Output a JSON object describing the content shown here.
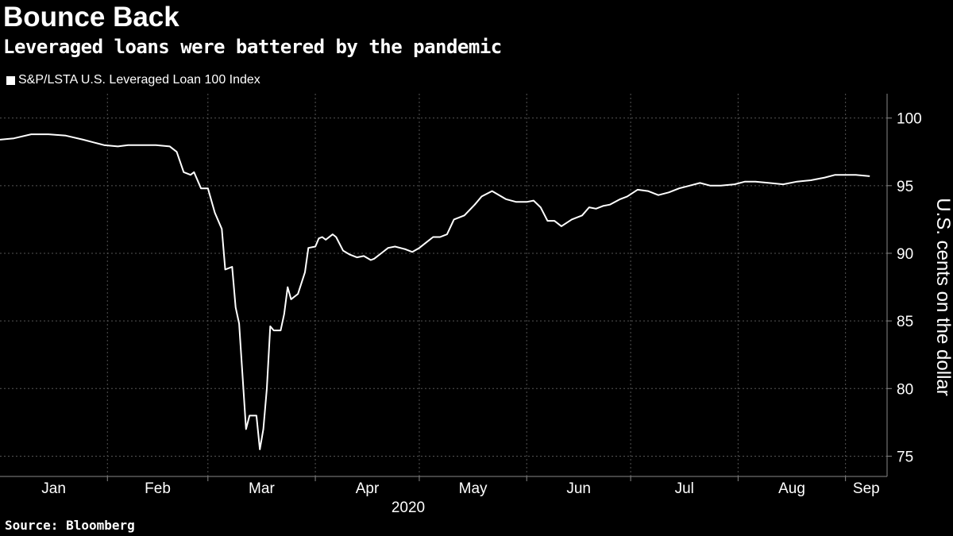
{
  "header": {
    "title": "Bounce Back",
    "subtitle": "Leveraged loans were battered by the pandemic"
  },
  "legend": {
    "label": "S&P/LSTA U.S. Leveraged Loan 100 Index",
    "color": "#ffffff"
  },
  "footer": {
    "source": "Source: Bloomberg"
  },
  "chart_data": {
    "type": "line",
    "title": "Bounce Back",
    "subtitle": "Leveraged loans were battered by the pandemic",
    "xlabel": "2020",
    "ylabel": "U.S. cents on the dollar",
    "ylim": [
      73.5,
      101.8
    ],
    "x_ticks": [
      "Jan",
      "Feb",
      "Mar",
      "Apr",
      "May",
      "Jun",
      "Jul",
      "Aug",
      "Sep"
    ],
    "y_ticks": [
      75,
      80,
      85,
      90,
      95,
      100
    ],
    "grid": true,
    "legend_position": "top-left",
    "background": "#000000",
    "line_color": "#ffffff",
    "series": [
      {
        "name": "S&P/LSTA U.S. Leveraged Loan 100 Index",
        "x": [
          "2020-01-01",
          "2020-01-05",
          "2020-01-10",
          "2020-01-15",
          "2020-01-20",
          "2020-01-25",
          "2020-01-28",
          "2020-01-31",
          "2020-02-04",
          "2020-02-07",
          "2020-02-12",
          "2020-02-15",
          "2020-02-19",
          "2020-02-21",
          "2020-02-23",
          "2020-02-25",
          "2020-02-26",
          "2020-02-28",
          "2020-03-01",
          "2020-03-03",
          "2020-03-05",
          "2020-03-06",
          "2020-03-08",
          "2020-03-09",
          "2020-03-10",
          "2020-03-12",
          "2020-03-13",
          "2020-03-15",
          "2020-03-16",
          "2020-03-17",
          "2020-03-18",
          "2020-03-19",
          "2020-03-20",
          "2020-03-22",
          "2020-03-23",
          "2020-03-24",
          "2020-03-25",
          "2020-03-26",
          "2020-03-27",
          "2020-03-29",
          "2020-03-30",
          "2020-04-01",
          "2020-04-02",
          "2020-04-03",
          "2020-04-04",
          "2020-04-06",
          "2020-04-07",
          "2020-04-09",
          "2020-04-11",
          "2020-04-13",
          "2020-04-15",
          "2020-04-17",
          "2020-04-18",
          "2020-04-20",
          "2020-04-22",
          "2020-04-24",
          "2020-04-27",
          "2020-04-29",
          "2020-05-01",
          "2020-05-03",
          "2020-05-05",
          "2020-05-07",
          "2020-05-09",
          "2020-05-11",
          "2020-05-14",
          "2020-05-17",
          "2020-05-19",
          "2020-05-22",
          "2020-05-26",
          "2020-05-29",
          "2020-06-01",
          "2020-06-03",
          "2020-06-05",
          "2020-06-07",
          "2020-06-09",
          "2020-06-11",
          "2020-06-14",
          "2020-06-17",
          "2020-06-19",
          "2020-06-21",
          "2020-06-23",
          "2020-06-25",
          "2020-06-28",
          "2020-06-30",
          "2020-07-03",
          "2020-07-06",
          "2020-07-09",
          "2020-07-12",
          "2020-07-15",
          "2020-07-18",
          "2020-07-21",
          "2020-07-24",
          "2020-07-27",
          "2020-07-31",
          "2020-08-03",
          "2020-08-06",
          "2020-08-10",
          "2020-08-14",
          "2020-08-18",
          "2020-08-22",
          "2020-08-26",
          "2020-08-29",
          "2020-09-01",
          "2020-09-04",
          "2020-09-08"
        ],
        "y": [
          98.4,
          98.5,
          98.8,
          98.8,
          98.7,
          98.4,
          98.2,
          98.0,
          97.9,
          98.0,
          98.0,
          98.0,
          97.9,
          97.5,
          96.0,
          95.8,
          96.0,
          94.8,
          94.8,
          93.0,
          91.8,
          88.8,
          89.0,
          86.0,
          84.8,
          77.0,
          78.0,
          78.0,
          75.5,
          77.0,
          80.0,
          84.6,
          84.3,
          84.3,
          85.5,
          87.5,
          86.6,
          86.8,
          87.0,
          88.6,
          90.4,
          90.5,
          91.1,
          91.2,
          91.0,
          91.4,
          91.2,
          90.2,
          89.9,
          89.7,
          89.8,
          89.5,
          89.6,
          90.0,
          90.4,
          90.5,
          90.3,
          90.1,
          90.4,
          90.8,
          91.2,
          91.2,
          91.4,
          92.5,
          92.8,
          93.6,
          94.2,
          94.6,
          94.0,
          93.8,
          93.8,
          93.9,
          93.4,
          92.4,
          92.4,
          92.0,
          92.5,
          92.8,
          93.4,
          93.3,
          93.5,
          93.6,
          94.0,
          94.2,
          94.7,
          94.6,
          94.3,
          94.5,
          94.8,
          95.0,
          95.2,
          95.0,
          95.0,
          95.1,
          95.3,
          95.3,
          95.2,
          95.1,
          95.3,
          95.4,
          95.6,
          95.8,
          95.8,
          95.8,
          95.7
        ]
      }
    ]
  }
}
